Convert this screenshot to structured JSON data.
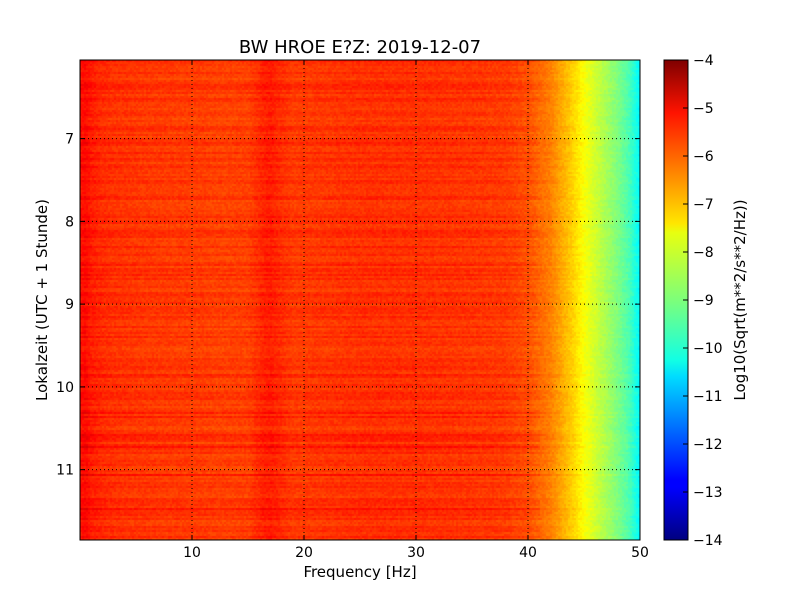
{
  "chart_data": {
    "type": "heatmap",
    "title": "BW HROE E?Z: 2019-12-07",
    "xlabel": "Frequency [Hz]",
    "ylabel": "Lokalzeit (UTC + 1 Stunde)",
    "xlim": [
      0,
      50
    ],
    "ylim": [
      6.05,
      11.85
    ],
    "y_inverted": true,
    "x_ticks": [
      10,
      20,
      30,
      40,
      50
    ],
    "x_tick_labels": [
      "10",
      "20",
      "30",
      "40",
      "50"
    ],
    "y_ticks": [
      7,
      8,
      9,
      10,
      11
    ],
    "y_tick_labels": [
      "7",
      "8",
      "9",
      "10",
      "11"
    ],
    "grid": true,
    "colormap": "jet",
    "colorbar": {
      "label": "Log10(Sqrt(m**2/s**2/Hz))",
      "range": [
        -14,
        -4
      ],
      "ticks": [
        -4,
        -5,
        -6,
        -7,
        -8,
        -9,
        -10,
        -11,
        -12,
        -13,
        -14
      ],
      "tick_labels": [
        "−4",
        "−5",
        "−6",
        "−7",
        "−8",
        "−9",
        "−10",
        "−11",
        "−12",
        "−13",
        "−14"
      ]
    },
    "spectrum_profile": {
      "frequency_hz": [
        0,
        0.5,
        1,
        2,
        3,
        5,
        8,
        10,
        12,
        15,
        16.5,
        17,
        17.5,
        19,
        22,
        25,
        30,
        35,
        38,
        40,
        42,
        43,
        44,
        45,
        46,
        47,
        48,
        49,
        49.5,
        50
      ],
      "log10_amplitude": [
        -5.4,
        -5.3,
        -5.5,
        -5.65,
        -5.7,
        -5.75,
        -5.8,
        -5.8,
        -5.85,
        -5.85,
        -5.55,
        -5.5,
        -5.6,
        -5.8,
        -5.75,
        -5.7,
        -5.7,
        -5.75,
        -5.8,
        -6.0,
        -6.5,
        -6.9,
        -7.3,
        -7.8,
        -8.2,
        -8.6,
        -9.0,
        -9.5,
        -9.9,
        -10.3
      ]
    }
  }
}
